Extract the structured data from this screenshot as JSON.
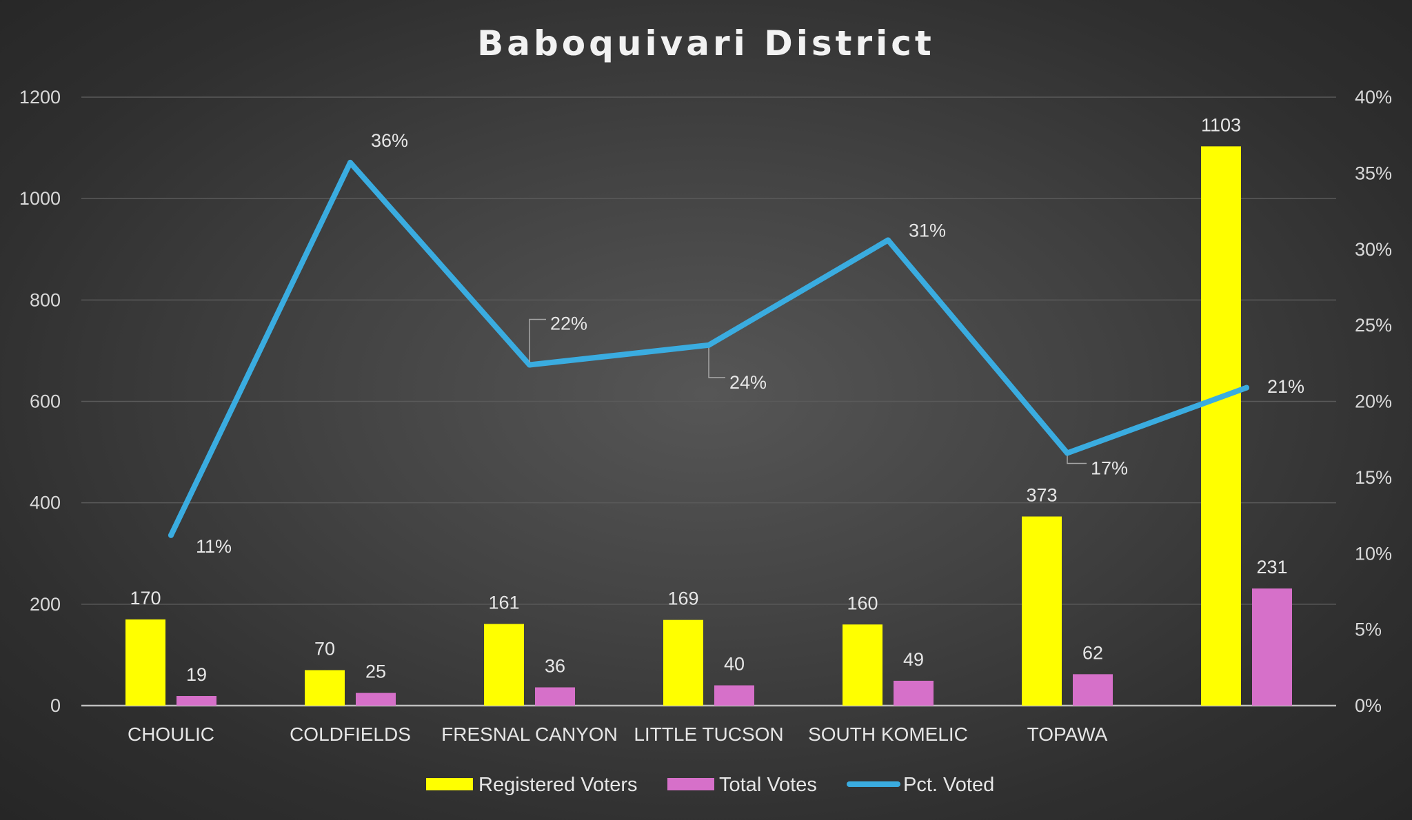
{
  "chart_data": {
    "type": "bar",
    "title": "Baboquivari District",
    "categories": [
      "CHOULIC",
      "COLDFIELDS",
      "FRESNAL CANYON",
      "LITTLE TUCSON",
      "SOUTH KOMELIC",
      "TOPAWA",
      ""
    ],
    "series": [
      {
        "name": "Registered Voters",
        "type": "bar",
        "axis": "left",
        "color": "#ffff00",
        "values": [
          170,
          70,
          161,
          169,
          160,
          373,
          1103
        ],
        "labels": [
          "170",
          "70",
          "161",
          "169",
          "160",
          "373",
          "1103"
        ]
      },
      {
        "name": "Total Votes",
        "type": "bar",
        "axis": "left",
        "color": "#d670c9",
        "values": [
          19,
          25,
          36,
          40,
          49,
          62,
          231
        ],
        "labels": [
          "19",
          "25",
          "36",
          "40",
          "49",
          "62",
          "231"
        ]
      },
      {
        "name": "Pct. Voted",
        "type": "line",
        "axis": "right",
        "color": "#3aace0",
        "values": [
          11.2,
          35.7,
          22.4,
          23.7,
          30.6,
          16.6,
          20.9
        ],
        "labels": [
          "11%",
          "36%",
          "22%",
          "24%",
          "31%",
          "17%",
          "21%"
        ]
      }
    ],
    "y_left": {
      "min": 0,
      "max": 1200,
      "ticks": [
        "0",
        "200",
        "400",
        "600",
        "800",
        "1000",
        "1200"
      ]
    },
    "y_right": {
      "min": 0,
      "max": 40,
      "ticks": [
        "0%",
        "5%",
        "10%",
        "15%",
        "20%",
        "25%",
        "30%",
        "35%",
        "40%"
      ]
    },
    "grid": true,
    "legend_position": "bottom"
  }
}
